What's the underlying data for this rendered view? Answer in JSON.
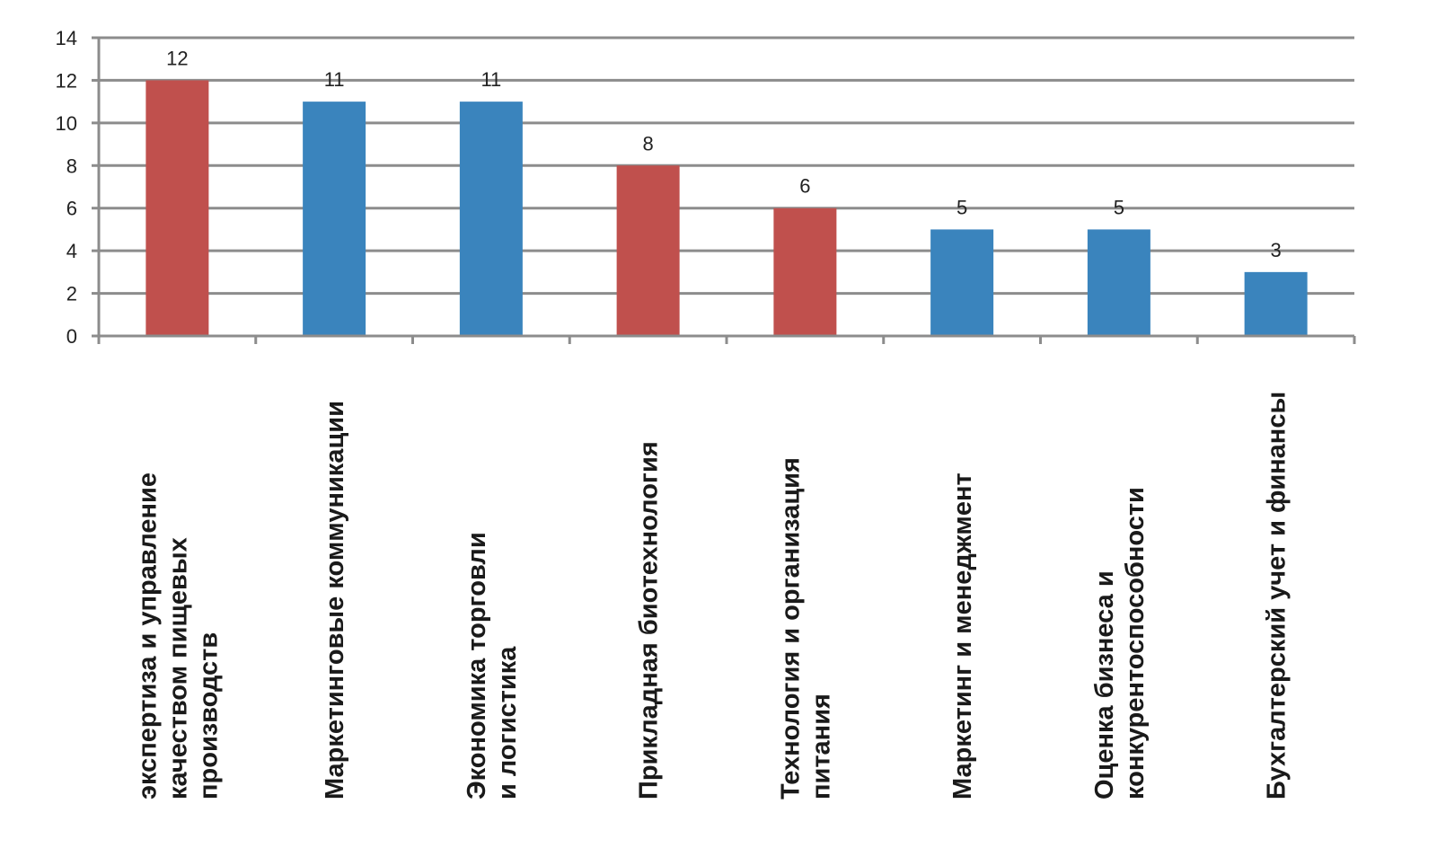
{
  "chart_data": {
    "type": "bar",
    "categories": [
      "экспертиза и управление качеством пищевых производств",
      "Маркетинговые коммуникации",
      "Экономика торговли и логистика",
      "Прикладная биотехнология",
      "Технология и организация питания",
      "Маркетинг и менеджмент",
      "Оценка бизнеса и конкурентоспособности",
      "Бухгалтерский учет и финансы"
    ],
    "category_lines": [
      [
        "экспертиза и управление",
        "качеством пищевых",
        "производств"
      ],
      [
        "Маркетинговые коммуникации"
      ],
      [
        "Экономика торговли",
        "и логистика"
      ],
      [
        "Прикладная биотехнология"
      ],
      [
        "Технология и организация",
        "питания"
      ],
      [
        "Маркетинг и менеджмент"
      ],
      [
        "Оценка бизнеса и",
        "конкурентоспособности"
      ],
      [
        "Бухгалтерский учет и финансы"
      ]
    ],
    "values": [
      12,
      11,
      11,
      8,
      6,
      5,
      5,
      3
    ],
    "data_labels": [
      "12",
      "11",
      "11",
      "8",
      "6",
      "5",
      "5",
      "3"
    ],
    "bar_colors": [
      "#c0504d",
      "#3a84bd",
      "#3a84bd",
      "#c0504d",
      "#c0504d",
      "#3a84bd",
      "#3a84bd",
      "#3a84bd"
    ],
    "yticks": [
      0,
      2,
      4,
      6,
      8,
      10,
      12,
      14
    ],
    "ylim": [
      0,
      14
    ],
    "grid": true,
    "title": "",
    "xlabel": "",
    "ylabel": ""
  },
  "colors": {
    "gridline": "#8c8c8c",
    "axis": "#8c8c8c",
    "text": "#1a1a1a"
  }
}
